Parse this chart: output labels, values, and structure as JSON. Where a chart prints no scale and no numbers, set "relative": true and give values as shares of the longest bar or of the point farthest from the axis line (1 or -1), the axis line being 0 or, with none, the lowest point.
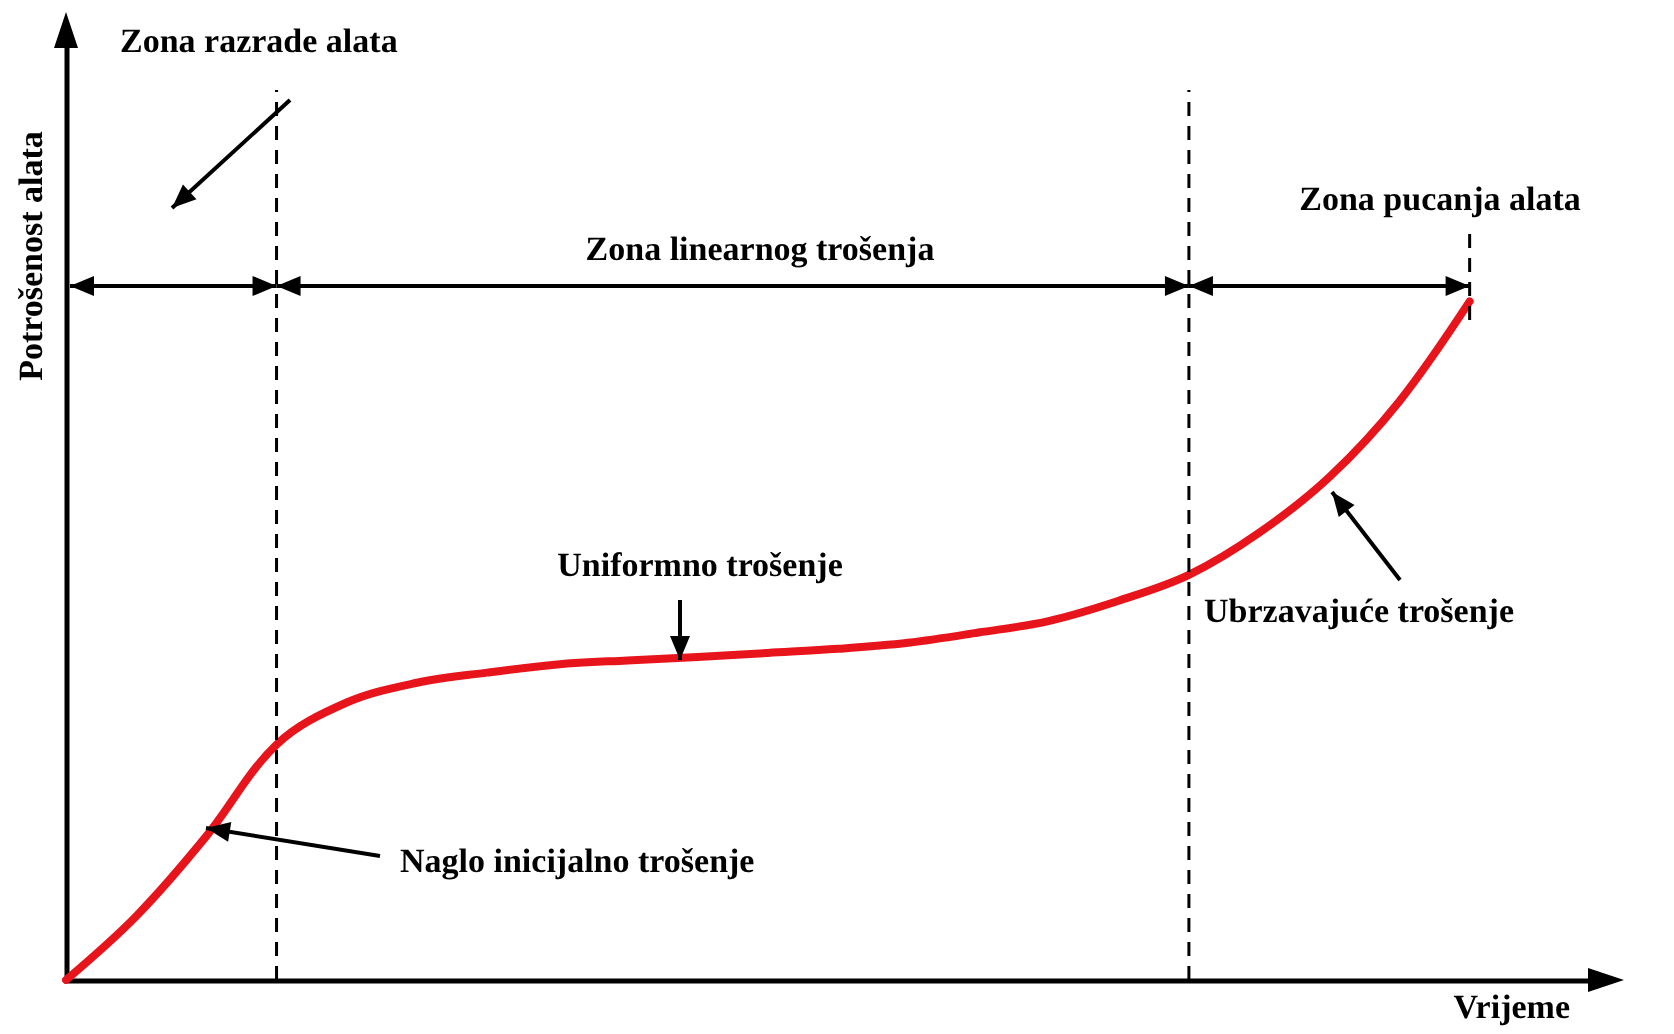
{
  "chart_data": {
    "type": "line",
    "relative": true,
    "xlabel": "Vrijeme",
    "ylabel": "Potrošenost alata",
    "categories": [
      null,
      null,
      null,
      null,
      null,
      null,
      null,
      null,
      null,
      null,
      null,
      null,
      null,
      null,
      null,
      null,
      null,
      null,
      null,
      null,
      null,
      null,
      null
    ],
    "series": [
      {
        "color": "#e8141c",
        "values": [
          0,
          0.094,
          0.212,
          0.347,
          0.409,
          0.438,
          0.453,
          0.465,
          0.471,
          0.476,
          0.482,
          0.488,
          0.497,
          0.512,
          0.529,
          0.559,
          0.597,
          0.659,
          0.741,
          0.853,
          1,
          null,
          null
        ]
      }
    ],
    "annotations": [
      "Zona razrade alata",
      "Zona linearnog trošenja",
      "Zona pucanja alata",
      "Uniformno trošenje",
      "Naglo inicijalno trošenje",
      "Ubrzavajuće trošenje"
    ],
    "marker": "none",
    "line_style": "solid",
    "grid": false
  }
}
